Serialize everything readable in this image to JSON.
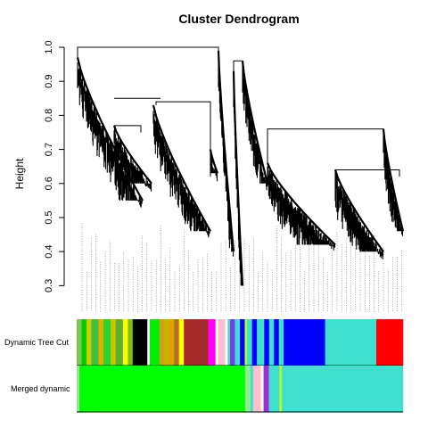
{
  "chart_data": {
    "type": "dendrogram",
    "title": "Cluster Dendrogram",
    "ylabel": "Height",
    "xlabel": "",
    "ylim": [
      0.28,
      1.0
    ],
    "yticks": [
      "0.3",
      "0.4",
      "0.5",
      "0.6",
      "0.7",
      "0.8",
      "0.9",
      "1.0"
    ],
    "merges": [
      {
        "left_height": 0.97,
        "right_height": 0.99,
        "height": 1.0
      },
      {
        "left_height": 0.85,
        "right_height": 0.84,
        "height": 0.85
      },
      {
        "left_height": 0.77,
        "right_height": 0.75,
        "height": 0.77
      },
      {
        "left_height": 0.83,
        "right_height": 0.62,
        "height": 0.84
      },
      {
        "left_height": 0.95,
        "right_height": 0.93,
        "height": 0.96
      },
      {
        "left_height": 0.76,
        "right_height": 0.7,
        "height": 0.76
      },
      {
        "left_height": 0.64,
        "right_height": 0.62,
        "height": 0.64
      }
    ],
    "color_rows": [
      {
        "label": "Dynamic Tree Cut",
        "segments": [
          {
            "color": "#7ec850",
            "span": 2
          },
          {
            "color": "#00cc00",
            "span": 2
          },
          {
            "color": "#cccc00",
            "span": 2
          },
          {
            "color": "#40c040",
            "span": 3
          },
          {
            "color": "#e0b000",
            "span": 2
          },
          {
            "color": "#30d030",
            "span": 3
          },
          {
            "color": "#c8c800",
            "span": 2
          },
          {
            "color": "#60b030",
            "span": 3
          },
          {
            "color": "#ffff00",
            "span": 2
          },
          {
            "color": "#80c000",
            "span": 2
          },
          {
            "color": "#000000",
            "span": 6
          },
          {
            "color": "#ffffff",
            "span": 1
          },
          {
            "color": "#00ee00",
            "span": 4
          },
          {
            "color": "#d4a017",
            "span": 2
          },
          {
            "color": "#c8b400",
            "span": 2
          },
          {
            "color": "#e0a000",
            "span": 2
          },
          {
            "color": "#b07020",
            "span": 2
          },
          {
            "color": "#ffff00",
            "span": 2
          },
          {
            "color": "#a52a2a",
            "span": 10
          },
          {
            "color": "#ff00ff",
            "span": 3
          },
          {
            "color": "#ffffff",
            "span": 1
          },
          {
            "color": "#ffc0cb",
            "span": 3
          },
          {
            "color": "#ffffff",
            "span": 1
          },
          {
            "color": "#40e0d0",
            "span": 1
          },
          {
            "color": "#9c30d0",
            "span": 1
          },
          {
            "color": "#5050ff",
            "span": 1
          },
          {
            "color": "#40e0d0",
            "span": 2
          },
          {
            "color": "#0000ff",
            "span": 2
          },
          {
            "color": "#adff2f",
            "span": 1
          },
          {
            "color": "#40e0d0",
            "span": 2
          },
          {
            "color": "#0000ff",
            "span": 2
          },
          {
            "color": "#40e0d0",
            "span": 3
          },
          {
            "color": "#0000ff",
            "span": 2
          },
          {
            "color": "#40e0d0",
            "span": 2
          },
          {
            "color": "#0000ff",
            "span": 2
          },
          {
            "color": "#40e0d0",
            "span": 2
          },
          {
            "color": "#0000ff",
            "span": 17
          },
          {
            "color": "#40e0d0",
            "span": 21
          },
          {
            "color": "#ff0000",
            "span": 11
          }
        ]
      },
      {
        "label": "Merged dynamic",
        "segments": [
          {
            "color": "#a0e0a0",
            "span": 1
          },
          {
            "color": "#00ff00",
            "span": 63
          },
          {
            "color": "#90ee90",
            "span": 2
          },
          {
            "color": "#40e0d0",
            "span": 1
          },
          {
            "color": "#ffc0cb",
            "span": 3
          },
          {
            "color": "#ffffff",
            "span": 1
          },
          {
            "color": "#9c30d0",
            "span": 2
          },
          {
            "color": "#40e0d0",
            "span": 4
          },
          {
            "color": "#adff2f",
            "span": 1
          },
          {
            "color": "#40e0d0",
            "span": 46
          }
        ]
      }
    ]
  }
}
